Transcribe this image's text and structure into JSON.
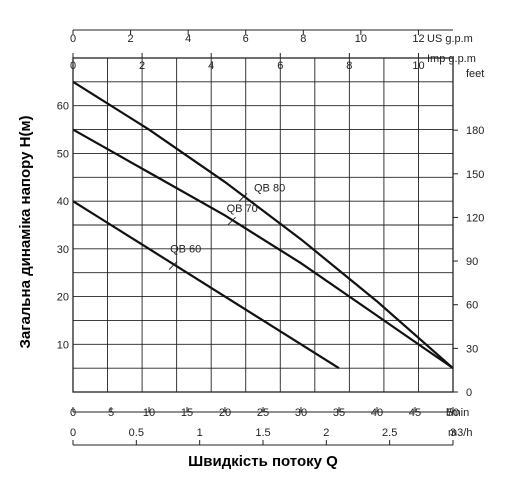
{
  "chart_data": {
    "type": "line",
    "xlabel": "Швидкість потоку Q",
    "ylabel": "Загальна динаміка напору H(м)",
    "xlim": [
      0,
      50
    ],
    "ylim": [
      0,
      70
    ],
    "grid": true,
    "x_unit": "l/min",
    "x_ticks": [
      "0",
      "5",
      "10",
      "15",
      "20",
      "25",
      "30",
      "35",
      "40",
      "45",
      "50"
    ],
    "y_ticks": [
      "10",
      "20",
      "30",
      "40",
      "50",
      "60"
    ],
    "secondary_axes": {
      "m3h": {
        "unit": "m3/h",
        "range": [
          0,
          3
        ],
        "ticks": [
          "0",
          "0.5",
          "1",
          "1.5",
          "2",
          "2.5",
          "3"
        ]
      },
      "usgpm": {
        "unit": "US g.p.m",
        "range": [
          0,
          13.2
        ],
        "ticks": [
          "0",
          "2",
          "4",
          "6",
          "8",
          "10",
          "12"
        ]
      },
      "impgpm": {
        "unit": "Imp g.p.m",
        "range": [
          0,
          11
        ],
        "ticks": [
          "0",
          "2",
          "4",
          "6",
          "8",
          "10"
        ]
      },
      "feet": {
        "unit": "feet",
        "range": [
          0,
          229.6
        ],
        "ticks": [
          "0",
          "30",
          "60",
          "90",
          "120",
          "150",
          "180"
        ]
      }
    },
    "series": [
      {
        "name": "QB 80",
        "x": [
          0,
          10,
          20,
          30,
          40,
          50
        ],
        "y": [
          65,
          55,
          44,
          32,
          19,
          5
        ]
      },
      {
        "name": "QB 70",
        "x": [
          0,
          10,
          20,
          30,
          40,
          50
        ],
        "y": [
          55,
          46,
          37,
          27,
          16,
          5
        ]
      },
      {
        "name": "QB 60",
        "x": [
          0,
          5,
          10,
          15,
          20,
          25,
          30,
          35
        ],
        "y": [
          40,
          35,
          30,
          25,
          20,
          15,
          10,
          5
        ]
      }
    ]
  }
}
